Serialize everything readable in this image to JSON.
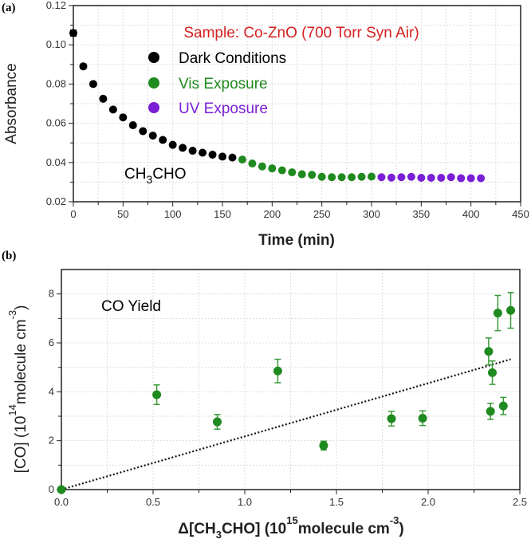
{
  "chart_data": [
    {
      "type": "scatter",
      "panel_label": "(a)",
      "title": "Sample: Co-ZnO (700 Torr Syn Air)",
      "annotation": {
        "main": "CH",
        "sub": "3",
        "rest": "CHO"
      },
      "xlabel": "Time (min)",
      "ylabel": "Absorbance",
      "xlim": [
        0,
        450
      ],
      "ylim": [
        0.02,
        0.12
      ],
      "xticks": [
        0,
        50,
        100,
        150,
        200,
        250,
        300,
        350,
        400,
        450
      ],
      "yticks": [
        "0.02",
        "0.04",
        "0.06",
        "0.08",
        "0.10",
        "0.12"
      ],
      "grid": true,
      "legend_position": "top-center",
      "series": [
        {
          "name": "Dark Conditions",
          "color": "#000000",
          "x": [
            0,
            10,
            20,
            30,
            40,
            50,
            60,
            70,
            80,
            90,
            100,
            110,
            120,
            130,
            140,
            150,
            160
          ],
          "y": [
            0.106,
            0.089,
            0.08,
            0.0725,
            0.067,
            0.063,
            0.059,
            0.056,
            0.0537,
            0.0515,
            0.049,
            0.0475,
            0.046,
            0.045,
            0.044,
            0.043,
            0.0425
          ],
          "err": [
            0.0015,
            0.0012,
            0.0011,
            0.001,
            0.0009,
            0.0008,
            0.0007,
            0.0006,
            0.0006,
            0.0005,
            0.0005,
            0.0005,
            0.0004,
            0.0004,
            0.0004,
            0.0004,
            0.0004
          ]
        },
        {
          "name": "Vis Exposure",
          "color": "#1f8a1f",
          "x": [
            170,
            180,
            190,
            200,
            210,
            220,
            230,
            240,
            250,
            260,
            270,
            280,
            290,
            300
          ],
          "y": [
            0.0415,
            0.0395,
            0.038,
            0.037,
            0.036,
            0.035,
            0.034,
            0.0337,
            0.0327,
            0.0325,
            0.0325,
            0.0325,
            0.0327,
            0.0328
          ]
        },
        {
          "name": "UV Exposure",
          "color": "#7b1fd6",
          "x": [
            310,
            320,
            330,
            340,
            350,
            360,
            370,
            380,
            390,
            400,
            410
          ],
          "y": [
            0.0325,
            0.0323,
            0.0325,
            0.0327,
            0.0322,
            0.0322,
            0.0322,
            0.0325,
            0.032,
            0.032,
            0.032
          ]
        }
      ],
      "title_color": "#d62020"
    },
    {
      "type": "scatter",
      "panel_label": "(b)",
      "annotation": "CO Yield",
      "xlabel": {
        "pre": "Δ[CH",
        "sub": "3",
        "mid": "CHO] (10",
        "sup": "15",
        "post": "molecule cm",
        "sup2": "-3",
        "end": ")"
      },
      "ylabel": {
        "pre": "[CO] (10",
        "sup": "14",
        "post": "molecule cm",
        "sup2": "-3",
        "end": ")"
      },
      "xlim": [
        0,
        2.5
      ],
      "ylim": [
        0,
        9
      ],
      "xticks": [
        "0.0",
        "0.5",
        "1.0",
        "1.5",
        "2.0",
        "2.5"
      ],
      "yticks": [
        0,
        2,
        4,
        6,
        8
      ],
      "grid": true,
      "series": [
        {
          "name": "CO Yield",
          "color": "#1f8a1f",
          "x": [
            0,
            0.52,
            0.85,
            1.18,
            1.43,
            1.8,
            1.97,
            2.33,
            2.34,
            2.35,
            2.38,
            2.41,
            2.45
          ],
          "y": [
            0,
            3.88,
            2.77,
            4.85,
            1.8,
            2.9,
            2.92,
            5.65,
            3.2,
            4.78,
            7.22,
            3.42,
            7.33
          ],
          "err": [
            0,
            0.4,
            0.3,
            0.48,
            0.18,
            0.3,
            0.3,
            0.55,
            0.33,
            0.48,
            0.72,
            0.35,
            0.73
          ]
        }
      ],
      "fit_line": {
        "style": "dotted",
        "slope": 2.175,
        "intercept": 0,
        "x_range": [
          0,
          2.45
        ]
      }
    }
  ]
}
